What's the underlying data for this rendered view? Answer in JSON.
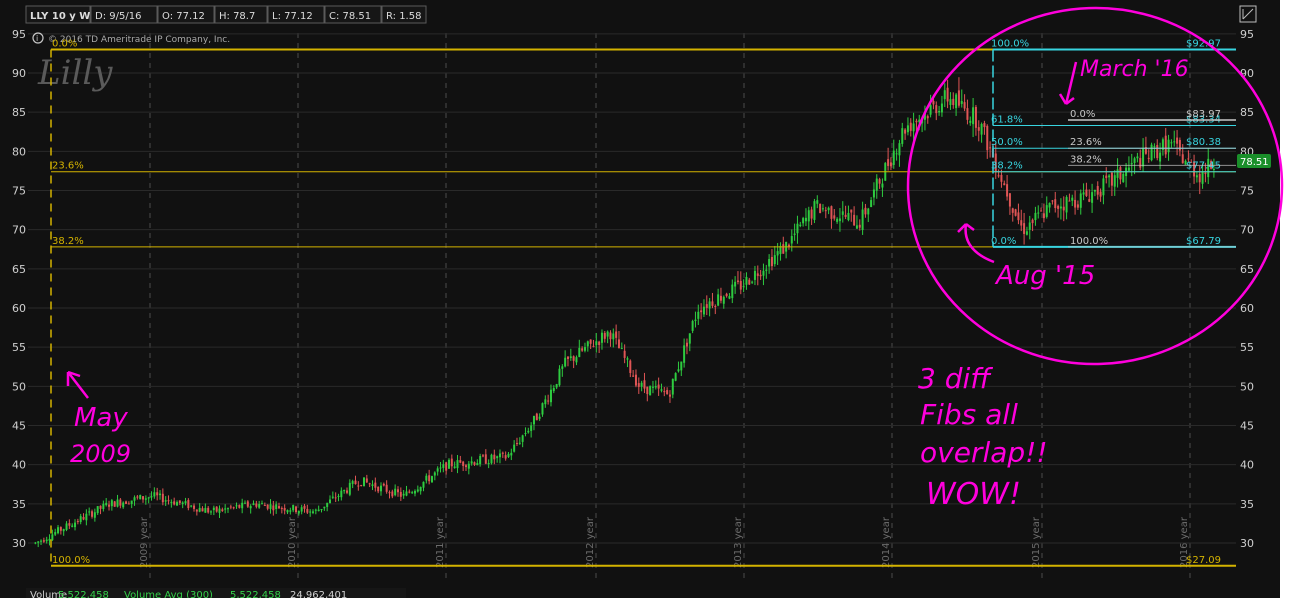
{
  "header": {
    "symbol": "LLY 10 y W",
    "date": "D: 9/5/16",
    "open": "O: 77.12",
    "high": "H: 78.7",
    "low": "L: 77.12",
    "close": "C: 78.51",
    "range": "R: 1.58"
  },
  "copyright": "© 2016 TD Ameritrade IP Company, Inc.",
  "logo_text": "Lilly",
  "bottom_bar": {
    "volume_label": "Volume",
    "values": [
      "5,522,458",
      "Volume Avg (300)",
      "5,522,458",
      "24,962,401"
    ]
  },
  "price_badge": "78.51",
  "fib_big": {
    "labels": [
      {
        "label": "0.0%",
        "price": 93.0
      },
      {
        "label": "23.6%",
        "price": 77.4
      },
      {
        "label": "38.2%",
        "price": 67.8
      },
      {
        "label": "100.0%",
        "price": 27.09
      }
    ],
    "low_value": "$27.09",
    "color": "#d4b300"
  },
  "fib_cyan": {
    "labels": [
      {
        "label": "100.0%",
        "price": 93.0,
        "value": "$92.97"
      },
      {
        "label": "61.8%",
        "price": 83.3,
        "value": "$83.34"
      },
      {
        "label": "50.0%",
        "price": 80.4,
        "value": "$80.38"
      },
      {
        "label": "38.2%",
        "price": 77.4,
        "value": "$77.45"
      },
      {
        "label": "0.0%",
        "price": 67.8,
        "value": "$67.79"
      }
    ],
    "color": "#38d5e0"
  },
  "fib_white": {
    "labels": [
      {
        "label": "0.0%",
        "price": 84.0,
        "value": "$83.97"
      },
      {
        "label": "23.6%",
        "price": 80.4,
        "value": ""
      },
      {
        "label": "38.2%",
        "price": 78.2,
        "value": ""
      },
      {
        "label": "100.0%",
        "price": 67.8,
        "value": ""
      }
    ],
    "color": "#c8c8c8"
  },
  "annotations": {
    "may": "May",
    "year2009": "2009",
    "march": "March '16",
    "aug": "Aug '15",
    "fibs1": "3 diff",
    "fibs2": "Fibs all",
    "fibs3": "overlap!!",
    "fibs4": "WOW!"
  },
  "chart_data": {
    "type": "line",
    "title": "LLY 10 y W",
    "ylim": [
      25,
      96
    ],
    "yticks": [
      30,
      35,
      40,
      45,
      50,
      55,
      60,
      65,
      70,
      75,
      80,
      85,
      90,
      95
    ],
    "year_labels": [
      "2009 year",
      "2010 year",
      "2011 year",
      "2012 year",
      "2013 year",
      "2014 year",
      "2015 year",
      "2016 year"
    ],
    "x": [
      2008.7,
      2009.2,
      2009.5,
      2009.9,
      2010.2,
      2010.6,
      2010.9,
      2011.2,
      2011.5,
      2011.9,
      2012.1,
      2012.3,
      2012.6,
      2012.8,
      2013.0,
      2013.2,
      2013.5,
      2013.8,
      2014.0,
      2014.3,
      2014.6,
      2014.9,
      2015.1,
      2015.4,
      2015.6,
      2015.8,
      2016.0,
      2016.2,
      2016.4,
      2016.6,
      2016.7
    ],
    "values": [
      30,
      35,
      36,
      34,
      35,
      34,
      38,
      36,
      40,
      41,
      46,
      53,
      57,
      50,
      49,
      60,
      63,
      68,
      73,
      71,
      83,
      87,
      84,
      70,
      73,
      74,
      76,
      79,
      81,
      77,
      78.51
    ],
    "last_price": 78.51
  }
}
